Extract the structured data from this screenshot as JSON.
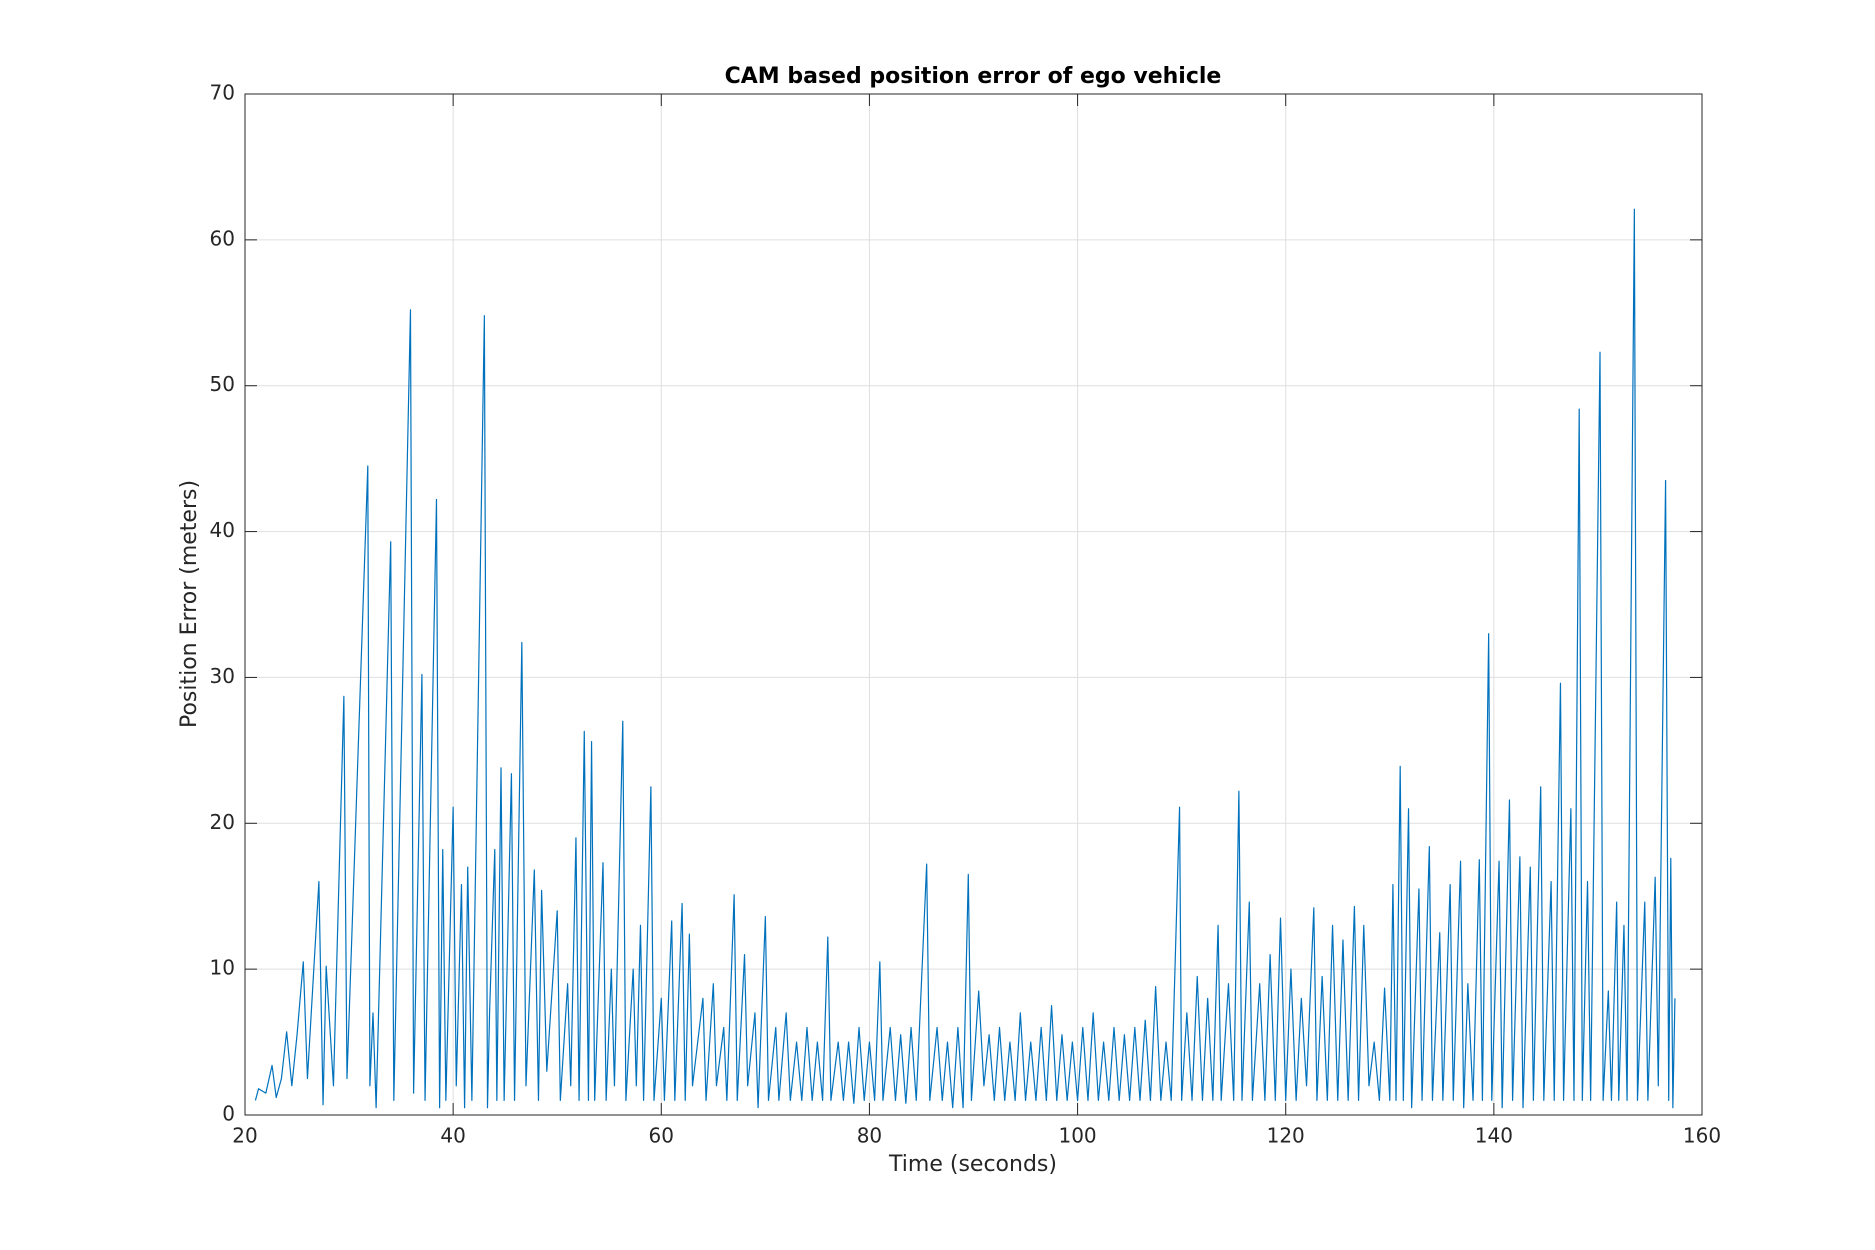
{
  "chart_data": {
    "type": "line",
    "title": "CAM based position error of ego vehicle",
    "xlabel": "Time (seconds)",
    "ylabel": "Position Error (meters)",
    "xlim": [
      20,
      160
    ],
    "ylim": [
      0,
      70
    ],
    "xticks": [
      20,
      40,
      60,
      80,
      100,
      120,
      140,
      160
    ],
    "yticks": [
      0,
      10,
      20,
      30,
      40,
      50,
      60,
      70
    ],
    "grid": true,
    "series": [
      {
        "name": "Position error",
        "color": "#0072bd",
        "x": [
          21,
          21.3,
          22,
          22.6,
          23,
          23.5,
          24,
          24.5,
          25,
          25.6,
          26,
          27.1,
          27.5,
          27.8,
          28.5,
          29.5,
          29.8,
          31.8,
          32,
          32.3,
          32.6,
          34,
          34.3,
          35.9,
          36.2,
          37,
          37.3,
          38.4,
          38.7,
          39,
          39.3,
          40,
          40.3,
          40.8,
          41.1,
          41.4,
          41.8,
          43,
          43.3,
          43.5,
          44,
          44.2,
          44.6,
          44.9,
          45.6,
          45.9,
          46.6,
          47,
          47.8,
          48.2,
          48.5,
          49,
          50,
          50.3,
          51,
          51.3,
          51.8,
          52.1,
          52.6,
          53,
          53.3,
          53.6,
          54.4,
          54.7,
          55.2,
          55.5,
          56.3,
          56.6,
          57.3,
          57.6,
          58,
          58.3,
          59,
          59.3,
          60,
          60.3,
          61,
          61.3,
          62,
          62.3,
          62.7,
          63,
          64,
          64.3,
          65,
          65.3,
          66,
          66.3,
          67,
          67.3,
          68,
          68.3,
          69,
          69.3,
          70,
          70.3,
          71,
          71.3,
          72,
          72.4,
          73,
          73.5,
          74,
          74.5,
          75,
          75.5,
          76,
          76.3,
          77,
          77.5,
          78,
          78.5,
          79,
          79.5,
          80,
          80.5,
          81,
          81.3,
          82,
          82.5,
          83,
          83.5,
          84,
          84.5,
          85.5,
          85.8,
          86.5,
          87,
          87.5,
          88,
          88.5,
          89,
          89.5,
          89.8,
          90.5,
          91,
          91.5,
          92,
          92.5,
          93,
          93.5,
          94,
          94.5,
          95,
          95.5,
          96,
          96.5,
          97,
          97.5,
          98,
          98.5,
          99,
          99.5,
          100,
          100.5,
          101,
          101.5,
          102,
          102.5,
          103,
          103.5,
          104,
          104.5,
          105,
          105.5,
          106,
          106.5,
          107,
          107.5,
          108,
          108.5,
          109,
          109.8,
          110,
          110.5,
          111,
          111.5,
          112,
          112.5,
          113,
          113.5,
          113.8,
          114.5,
          115,
          115.5,
          115.8,
          116.5,
          116.8,
          117.5,
          118,
          118.5,
          119,
          119.5,
          120,
          120.5,
          121,
          121.5,
          122,
          122.7,
          123,
          123.5,
          124,
          124.5,
          125,
          125.5,
          126,
          126.6,
          127,
          127.5,
          128,
          128.5,
          129,
          129.5,
          130,
          130.3,
          130.6,
          131,
          131.3,
          131.8,
          132.1,
          132.8,
          133.1,
          133.8,
          134.1,
          134.8,
          135.1,
          135.8,
          136.1,
          136.8,
          137.1,
          137.5,
          138,
          138.6,
          138.9,
          139.5,
          139.8,
          140.5,
          140.8,
          141.5,
          141.8,
          142.5,
          142.8,
          143.5,
          143.8,
          144.5,
          144.8,
          145.5,
          145.8,
          146.4,
          146.7,
          147.4,
          147.7,
          148.2,
          148.5,
          149,
          149.3,
          150.2,
          150.5,
          151,
          151.3,
          151.8,
          152,
          152.5,
          152.8,
          153.5,
          153.8,
          154.5,
          154.8,
          155.5,
          155.8,
          156.5,
          156.8,
          157,
          157.2,
          157.4
        ],
        "values": [
          1,
          1.8,
          1.5,
          3.4,
          1.2,
          2.5,
          5.7,
          2,
          5.5,
          10.5,
          2.5,
          16,
          0.7,
          10.2,
          2,
          28.7,
          2.5,
          44.5,
          2,
          7,
          0.5,
          39.3,
          1,
          55.2,
          1.5,
          30.2,
          1,
          42.2,
          0.5,
          18.2,
          1,
          21.1,
          2,
          15.8,
          0.5,
          17,
          1,
          54.8,
          0.5,
          7,
          18.2,
          1,
          23.8,
          1,
          23.4,
          1,
          32.4,
          2,
          16.8,
          1,
          15.4,
          3,
          14,
          1,
          9,
          2,
          19,
          1,
          26.3,
          1,
          25.6,
          1,
          17.3,
          1,
          10,
          2,
          27,
          1,
          10,
          2,
          13,
          1,
          22.5,
          1,
          8,
          1,
          13.3,
          1,
          14.5,
          1,
          12.4,
          2,
          8,
          1,
          9,
          2,
          6,
          1,
          15.1,
          1,
          11,
          2,
          7,
          0.5,
          13.6,
          1,
          6,
          1,
          7,
          1,
          5,
          1,
          6,
          1,
          5,
          1,
          12.2,
          1,
          5,
          1,
          5,
          0.8,
          6,
          1,
          5,
          1,
          10.5,
          1,
          6,
          1,
          5.5,
          0.8,
          6,
          1,
          17.2,
          1,
          6,
          1,
          5,
          0.5,
          6,
          0.5,
          16.5,
          1,
          8.5,
          2,
          5.5,
          1,
          6,
          1,
          5,
          1,
          7,
          1,
          5,
          1,
          6,
          1,
          7.5,
          1,
          5.5,
          1,
          5,
          1,
          6,
          1,
          7,
          1,
          5,
          1,
          6,
          1,
          5.5,
          1,
          6,
          1,
          6.5,
          1,
          8.8,
          1,
          5,
          1,
          21.1,
          1,
          7,
          1,
          9.5,
          1,
          8,
          1,
          13,
          1,
          9,
          1,
          22.2,
          1,
          14.6,
          1,
          9,
          1,
          11,
          1,
          13.5,
          1,
          10,
          1,
          8,
          2,
          14.2,
          1,
          9.5,
          1,
          13,
          1,
          12,
          1,
          14.3,
          1,
          13,
          2,
          5,
          1,
          8.7,
          1,
          15.8,
          1,
          23.9,
          1,
          21,
          0.5,
          15.5,
          1,
          18.4,
          1,
          12.5,
          1,
          15.8,
          1,
          17.4,
          0.5,
          9,
          1,
          17.5,
          1,
          33,
          1,
          17.4,
          0.5,
          21.6,
          1,
          17.7,
          0.5,
          17,
          1,
          22.5,
          1,
          16,
          1,
          29.6,
          1,
          21,
          1,
          48.4,
          1,
          16,
          1,
          52.3,
          1,
          8.5,
          1,
          14.6,
          1,
          13,
          1,
          62.1,
          1,
          14.6,
          1,
          16.3,
          2,
          43.5,
          1,
          17.6,
          0.5,
          8
        ]
      }
    ]
  }
}
